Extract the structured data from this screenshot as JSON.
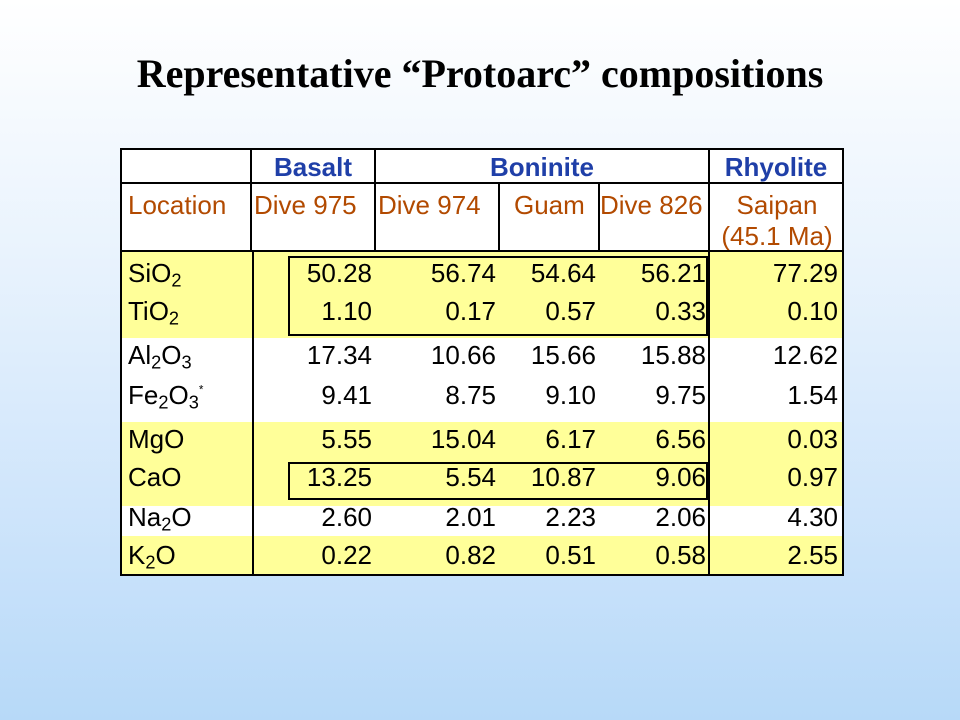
{
  "title": "Representative “Protoarc” compositions",
  "groups": {
    "basalt": "Basalt",
    "boninite": "Boninite",
    "rhyolite": "Rhyolite"
  },
  "header": {
    "location_label": "Location",
    "col1": "Dive 975",
    "col2": "Dive 974",
    "col3": "Guam",
    "col4": "Dive 826",
    "col5_line1": "Saipan",
    "col5_line2": "(45.1 Ma)"
  },
  "rows": [
    {
      "pre": "SiO",
      "sub": "2",
      "mid": "",
      "sub2": "",
      "post": "",
      "star": "",
      "values": [
        "50.28",
        "56.74",
        "54.64",
        "56.21",
        "77.29"
      ]
    },
    {
      "pre": "TiO",
      "sub": "2",
      "mid": "",
      "sub2": "",
      "post": "",
      "star": "",
      "values": [
        "1.10",
        "0.17",
        "0.57",
        "0.33",
        "0.10"
      ]
    },
    {
      "pre": "Al",
      "sub": "2",
      "mid": "O",
      "sub2": "3",
      "post": "",
      "star": "",
      "values": [
        "17.34",
        "10.66",
        "15.66",
        "15.88",
        "12.62"
      ]
    },
    {
      "pre": "Fe",
      "sub": "2",
      "mid": "O",
      "sub2": "3",
      "post": "",
      "star": "*",
      "values": [
        "9.41",
        "8.75",
        "9.10",
        "9.75",
        "1.54"
      ]
    },
    {
      "pre": "MgO",
      "sub": "",
      "mid": "",
      "sub2": "",
      "post": "",
      "star": "",
      "values": [
        "5.55",
        "15.04",
        "6.17",
        "6.56",
        "0.03"
      ]
    },
    {
      "pre": "CaO",
      "sub": "",
      "mid": "",
      "sub2": "",
      "post": "",
      "star": "",
      "values": [
        "13.25",
        "5.54",
        "10.87",
        "9.06",
        "0.97"
      ]
    },
    {
      "pre": "Na",
      "sub": "2",
      "mid": "O",
      "sub2": "",
      "post": "",
      "star": "",
      "values": [
        "2.60",
        "2.01",
        "2.23",
        "2.06",
        "4.30"
      ]
    },
    {
      "pre": "K",
      "sub": "2",
      "mid": "O",
      "sub2": "",
      "post": "",
      "star": "",
      "values": [
        "0.22",
        "0.82",
        "0.51",
        "0.58",
        "2.55"
      ]
    }
  ],
  "colors": {
    "highlight": "#ffff99",
    "group_text": "#1f3fa8",
    "header_text": "#b24a00"
  }
}
